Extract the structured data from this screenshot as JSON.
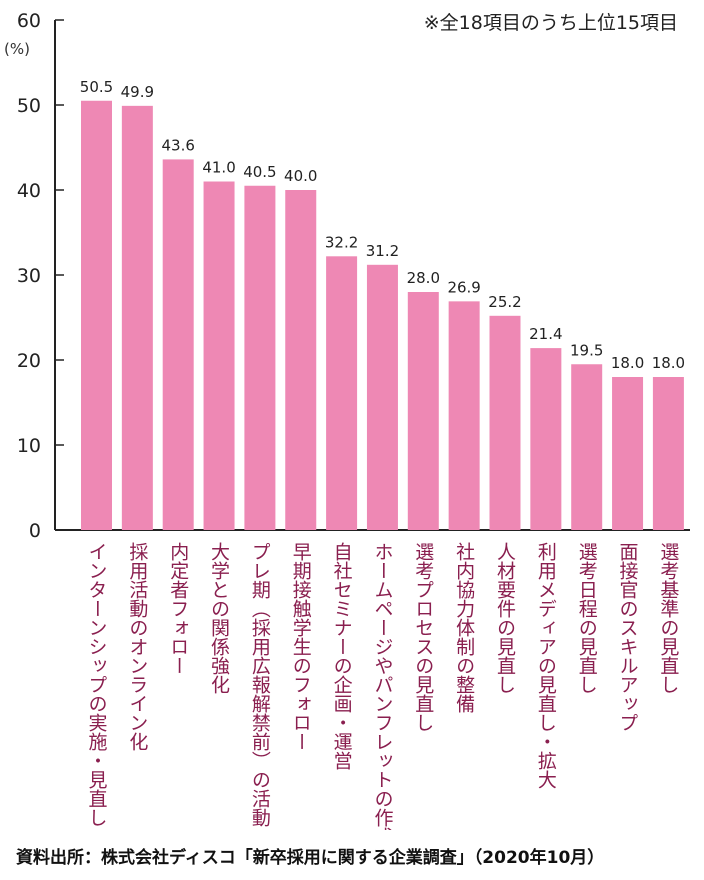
{
  "note": "※全18項目のうち上位15項目",
  "source": "資料出所：株式会社ディスコ「新卒採用に関する企業調査」（2020年10月）",
  "colors": {
    "bar": "#ee88b4",
    "label": "#8a1f4f",
    "axis": "#222222"
  },
  "chart_data": {
    "type": "bar",
    "ylabel": "(%)",
    "ylim": [
      0,
      60
    ],
    "yticks": [
      0,
      10,
      20,
      30,
      40,
      50,
      60
    ],
    "grid": false,
    "categories": [
      "インターンシップの実施・見直し",
      "採用活動のオンライン化",
      "内定者フォロー",
      "大学との関係強化",
      "プレ期（採用広報解禁前）の活動",
      "早期接触学生のフォロー",
      "自社セミナーの企画・運営",
      "ホームページやパンフレットの作成",
      "選考プロセスの見直し",
      "社内協力体制の整備",
      "人材要件の見直し",
      "利用メディアの見直し・拡大",
      "選考日程の見直し",
      "面接官のスキルアップ",
      "選考基準の見直し"
    ],
    "values": [
      50.5,
      49.9,
      43.6,
      41.0,
      40.5,
      40.0,
      32.2,
      31.2,
      28.0,
      26.9,
      25.2,
      21.4,
      19.5,
      18.0,
      18.0
    ],
    "value_labels": [
      "50.5",
      "49.9",
      "43.6",
      "41.0",
      "40.5",
      "40.0",
      "32.2",
      "31.2",
      "28.0",
      "26.9",
      "25.2",
      "21.4",
      "19.5",
      "18.0",
      "18.0"
    ]
  }
}
